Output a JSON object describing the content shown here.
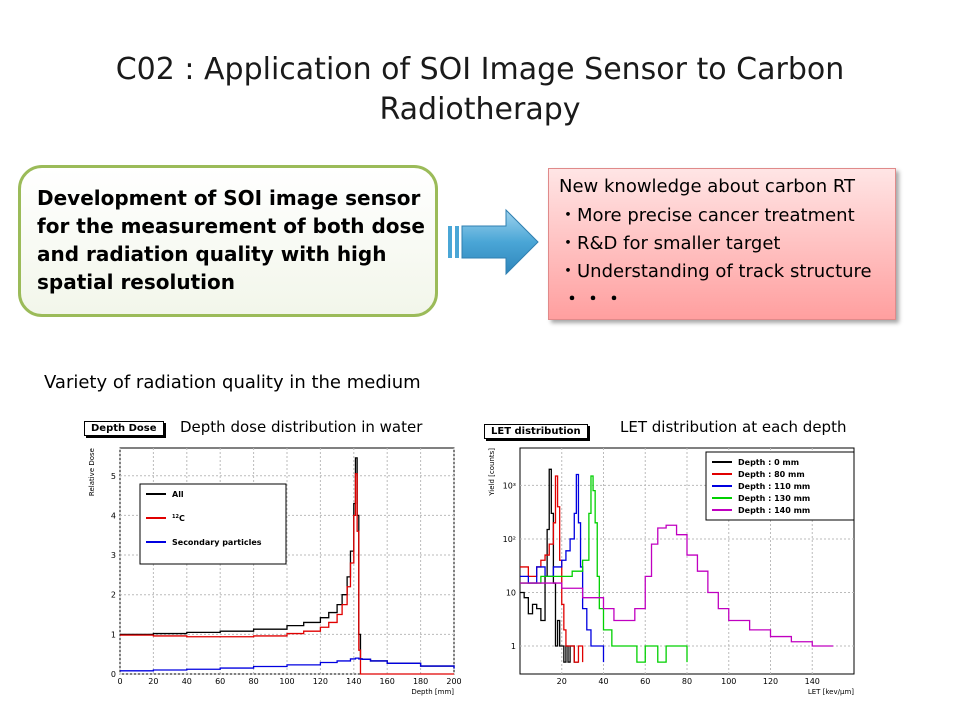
{
  "slide": {
    "title_line1": "C02 : Application of SOI Image Sensor to Carbon",
    "title_line2": "Radiotherapy",
    "left_box": {
      "text": "Development of SOI image sensor for the measurement of both dose and radiation quality with high spatial resolution"
    },
    "right_box": {
      "heading": "New knowledge about carbon RT",
      "bullets": [
        "・More precise cancer treatment",
        "・R&D for smaller target",
        "・Understanding of track structure"
      ],
      "ellipsis": "・・・"
    },
    "subheading": "Variety of radiation quality in the medium"
  },
  "chart_data": [
    {
      "type": "line",
      "tag": "Depth Dose",
      "title": "Depth dose distribution in water",
      "xlabel": "Depth [mm]",
      "ylabel": "Relative Dose",
      "xlim": [
        0,
        200
      ],
      "ylim": [
        0,
        5.7
      ],
      "xticks": [
        0,
        20,
        40,
        60,
        80,
        100,
        120,
        140,
        160,
        180,
        200
      ],
      "yticks": [
        0,
        1,
        2,
        3,
        4,
        5
      ],
      "grid": true,
      "legend_position": "top-left",
      "colors": {
        "All": "#000000",
        "12C": "#e00000",
        "Secondary particles": "#0000e0"
      },
      "series": [
        {
          "name": "All",
          "legend": "All",
          "x": [
            0,
            20,
            40,
            60,
            80,
            100,
            110,
            120,
            125,
            130,
            133,
            136,
            138,
            140,
            141,
            142,
            143,
            144,
            145,
            150,
            160,
            180,
            200
          ],
          "y": [
            1.0,
            1.02,
            1.05,
            1.08,
            1.13,
            1.22,
            1.3,
            1.42,
            1.55,
            1.75,
            2.0,
            2.45,
            3.1,
            4.3,
            5.45,
            4.0,
            1.0,
            0.38,
            0.37,
            0.33,
            0.27,
            0.2,
            0.14
          ]
        },
        {
          "name": "12C",
          "legend": "12C",
          "x": [
            0,
            20,
            40,
            60,
            80,
            100,
            110,
            120,
            125,
            130,
            133,
            136,
            138,
            140,
            141,
            142,
            143,
            144,
            145,
            200
          ],
          "y": [
            0.98,
            0.96,
            0.94,
            0.94,
            0.96,
            1.02,
            1.08,
            1.18,
            1.3,
            1.5,
            1.75,
            2.2,
            2.8,
            4.0,
            5.05,
            3.6,
            0.6,
            0.0,
            0.0,
            0.0
          ]
        },
        {
          "name": "Secondary particles",
          "legend": "Secondary particles",
          "x": [
            0,
            20,
            40,
            60,
            80,
            100,
            120,
            130,
            138,
            141,
            143,
            145,
            150,
            160,
            180,
            200
          ],
          "y": [
            0.08,
            0.1,
            0.12,
            0.15,
            0.19,
            0.23,
            0.29,
            0.33,
            0.38,
            0.4,
            0.38,
            0.37,
            0.33,
            0.27,
            0.2,
            0.14
          ]
        }
      ]
    },
    {
      "type": "line",
      "tag": "LET distribution",
      "title": "LET distribution at each depth",
      "xlabel": "LET [kev/μm]",
      "ylabel": "Yield [counts]",
      "xlim": [
        0,
        160
      ],
      "yscale": "log",
      "ylim": [
        0.3,
        5000
      ],
      "xticks": [
        20,
        40,
        60,
        80,
        100,
        120,
        140
      ],
      "yticks": [
        1,
        10,
        100,
        1000
      ],
      "yticklabels": [
        "1",
        "10",
        "10²",
        "10³"
      ],
      "grid": true,
      "legend_position": "top-right",
      "series": [
        {
          "name": "Depth : 0 mm",
          "color": "#000000",
          "x": [
            0,
            2,
            4,
            6,
            8,
            10,
            12,
            13,
            14,
            15,
            16,
            17,
            18,
            19,
            20,
            21,
            22,
            23,
            24,
            26,
            28
          ],
          "y": [
            10,
            8,
            4,
            6,
            5,
            3,
            20,
            150,
            2000,
            300,
            15,
            1,
            3,
            1,
            1,
            0.5,
            1,
            0.5,
            1,
            0.5,
            0.5
          ]
        },
        {
          "name": "Depth : 80 mm",
          "color": "#e00000",
          "x": [
            0,
            4,
            8,
            10,
            12,
            14,
            16,
            17,
            18,
            19,
            20,
            21,
            22,
            24,
            26,
            28,
            30
          ],
          "y": [
            30,
            20,
            30,
            40,
            50,
            80,
            200,
            1500,
            400,
            40,
            6,
            2,
            1,
            1,
            0.5,
            1,
            0.5
          ]
        },
        {
          "name": "Depth : 110 mm",
          "color": "#0000e0",
          "x": [
            0,
            4,
            8,
            12,
            16,
            20,
            22,
            24,
            26,
            27,
            28,
            29,
            30,
            32,
            34,
            36,
            40
          ],
          "y": [
            20,
            15,
            30,
            20,
            30,
            40,
            60,
            100,
            300,
            1600,
            200,
            30,
            5,
            2,
            1,
            1,
            0.5
          ]
        },
        {
          "name": "Depth : 130 mm",
          "color": "#00d000",
          "x": [
            0,
            10,
            20,
            25,
            30,
            33,
            34,
            35,
            36,
            37,
            38,
            40,
            44,
            50,
            56,
            60,
            66,
            70,
            80
          ],
          "y": [
            15,
            20,
            20,
            25,
            40,
            300,
            1500,
            800,
            200,
            20,
            5,
            2,
            1,
            1,
            0.5,
            1,
            0.5,
            1,
            0.5
          ]
        },
        {
          "name": "Depth : 140 mm",
          "color": "#c000c0",
          "x": [
            0,
            5,
            10,
            20,
            30,
            40,
            45,
            50,
            55,
            60,
            63,
            66,
            70,
            75,
            80,
            85,
            90,
            95,
            100,
            110,
            120,
            130,
            140,
            150
          ],
          "y": [
            15,
            15,
            15,
            12,
            8,
            5,
            3,
            3,
            5,
            20,
            80,
            160,
            180,
            120,
            50,
            25,
            10,
            5,
            3,
            2,
            1.5,
            1.2,
            1,
            1
          ]
        }
      ]
    }
  ]
}
